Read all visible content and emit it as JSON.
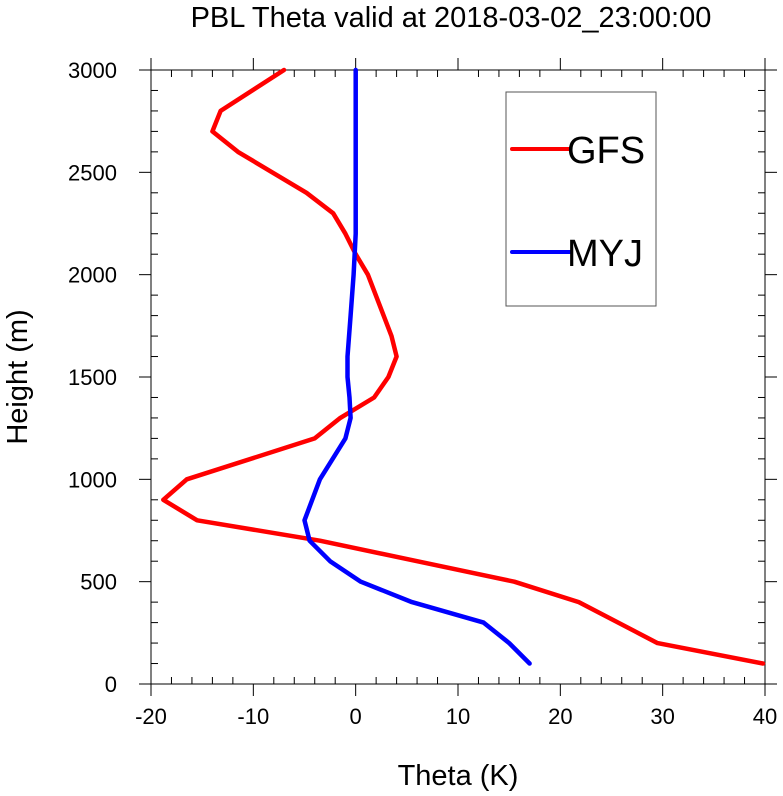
{
  "chart_data": {
    "type": "line",
    "title": "PBL Theta valid at 2018-03-02_23:00:00",
    "xlabel": "Theta (K)",
    "ylabel": "Height (m)",
    "xlim": [
      -20,
      40
    ],
    "ylim": [
      0,
      3000
    ],
    "xticks": [
      -20,
      -10,
      0,
      10,
      20,
      30,
      40
    ],
    "yticks": [
      0,
      500,
      1000,
      1500,
      2000,
      2500,
      3000
    ],
    "grid": false,
    "legend_position": "top-right",
    "series": [
      {
        "name": "GFS",
        "color": "#ff0000",
        "points": [
          [
            39.8,
            100
          ],
          [
            29.5,
            200
          ],
          [
            21.8,
            400
          ],
          [
            15.5,
            500
          ],
          [
            6,
            600
          ],
          [
            -3.5,
            700
          ],
          [
            -15.5,
            800
          ],
          [
            -18.8,
            900
          ],
          [
            -16.5,
            1000
          ],
          [
            -4,
            1200
          ],
          [
            -1.5,
            1300
          ],
          [
            1.8,
            1400
          ],
          [
            3.2,
            1500
          ],
          [
            4,
            1600
          ],
          [
            3.5,
            1700
          ],
          [
            1.2,
            2000
          ],
          [
            0,
            2100
          ],
          [
            -1,
            2200
          ],
          [
            -2.2,
            2300
          ],
          [
            -4.8,
            2400
          ],
          [
            -11.5,
            2600
          ],
          [
            -14,
            2700
          ],
          [
            -13.2,
            2800
          ],
          [
            -7,
            3000
          ]
        ]
      },
      {
        "name": "MYJ",
        "color": "#0000ff",
        "points": [
          [
            17,
            100
          ],
          [
            15,
            200
          ],
          [
            12.5,
            300
          ],
          [
            5.5,
            400
          ],
          [
            0.5,
            500
          ],
          [
            -2.5,
            600
          ],
          [
            -4.5,
            700
          ],
          [
            -5,
            800
          ],
          [
            -3.5,
            1000
          ],
          [
            -1,
            1200
          ],
          [
            -0.5,
            1300
          ],
          [
            -0.6,
            1400
          ],
          [
            -0.8,
            1500
          ],
          [
            -0.8,
            1600
          ],
          [
            -0.5,
            1800
          ],
          [
            -0.2,
            2000
          ],
          [
            0,
            2200
          ],
          [
            0,
            3000
          ]
        ]
      }
    ]
  }
}
